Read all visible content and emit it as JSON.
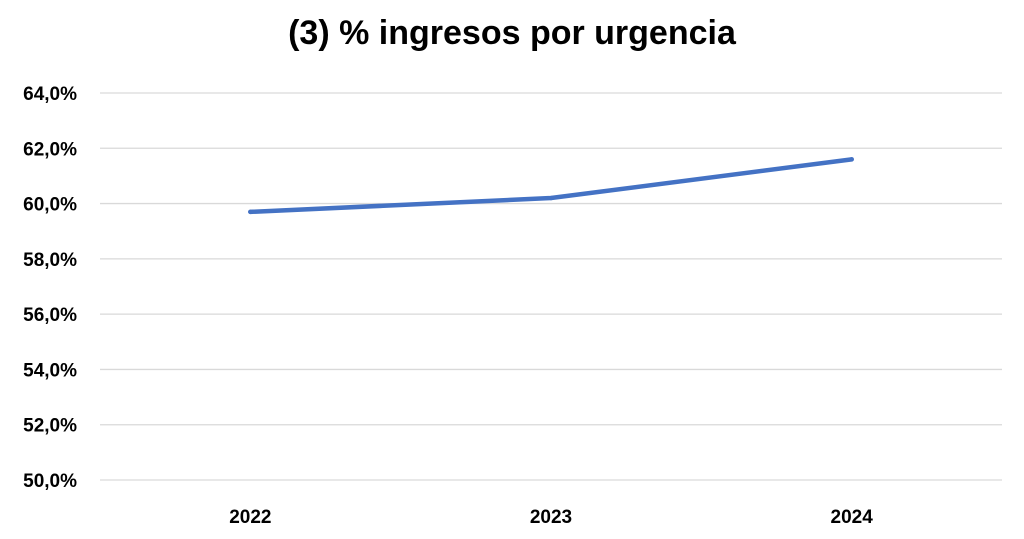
{
  "chart_data": {
    "type": "line",
    "title": "(3) % ingresos por urgencia",
    "xlabel": "",
    "ylabel": "",
    "categories": [
      "2022",
      "2023",
      "2024"
    ],
    "series": [
      {
        "values": [
          59.7,
          60.2,
          61.6
        ]
      }
    ],
    "ylim": [
      50.0,
      64.0
    ],
    "yticks": [
      "50,0%",
      "52,0%",
      "54,0%",
      "56,0%",
      "58,0%",
      "60,0%",
      "62,0%",
      "64,0%"
    ],
    "grid": true,
    "legend": "none",
    "colors": {
      "line": "#4472C4",
      "grid": "#D9D9D9"
    }
  }
}
